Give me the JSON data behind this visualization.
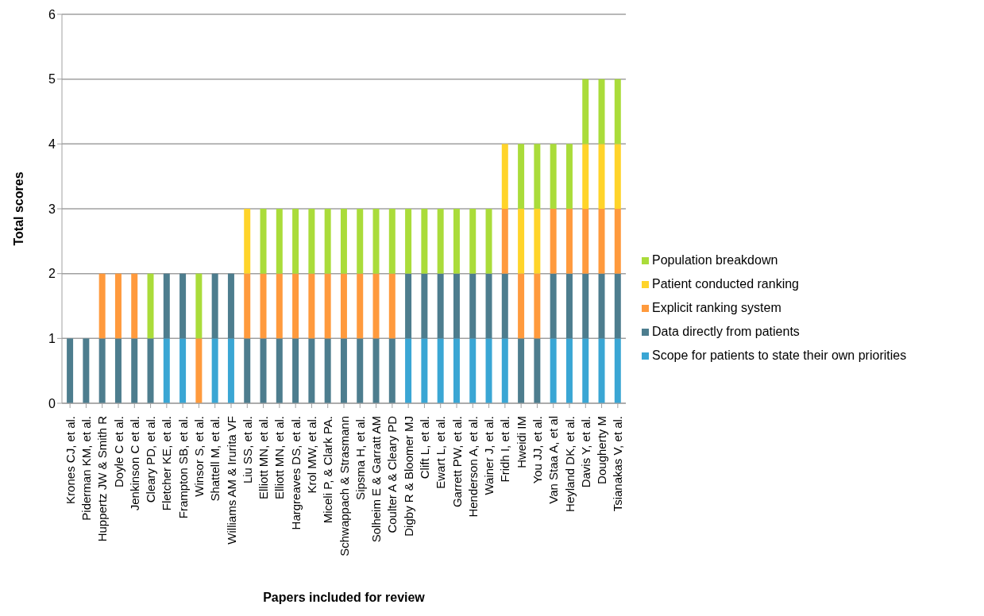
{
  "chart_data": {
    "type": "bar",
    "stacked": true,
    "xlabel": "Papers included for review",
    "ylabel": "Total scores",
    "categories": [
      "Krones CJ, et al.",
      "Piderman KM, et al.",
      "Huppertz JW & Smith R",
      "Doyle C et al.",
      "Jenkinson C et al.",
      "Cleary PD, et al.",
      "Fletcher KE, et al.",
      "Frampton SB, et al.",
      "Winsor S, et al.",
      "Shattell M, et al.",
      "Williams AM & Irurita VF",
      "Liu SS, et al.",
      "Elliott MN, et al.",
      "Elliott MN, et al.",
      "Hargreaves DS, et al.",
      "Krol MW, et al.",
      "Miceli P, & Clark PA.",
      "Schwappach & Strasmann",
      "Sipsma H, et al.",
      "Solheim E & Garratt AM",
      "Coulter A & Cleary PD",
      "Digby R & Bloomer MJ",
      "Clift L, et al.",
      "Ewart L, et al.",
      "Garrett PW, et al.",
      "Henderson A, et al.",
      "Wainer J, et al.",
      "Fridh I, et al.",
      "Hweidi IM",
      "You JJ, et al.",
      "Van Staa A, et al",
      "Heyland DK, et al.",
      "Davis Y, et al.",
      "Dougherty M",
      "Tsianakas V, et al."
    ],
    "series": [
      {
        "name": "Scope for patients to state their own priorities",
        "color": "#3aa6d4",
        "values": [
          0,
          0,
          0,
          0,
          0,
          0,
          1,
          1,
          0,
          1,
          1,
          0,
          0,
          0,
          0,
          0,
          0,
          0,
          0,
          0,
          0,
          1,
          1,
          1,
          1,
          1,
          1,
          1,
          0,
          0,
          1,
          1,
          1,
          1,
          1
        ]
      },
      {
        "name": "Data directly from patients",
        "color": "#4d7d8e",
        "values": [
          1,
          1,
          1,
          1,
          1,
          1,
          1,
          1,
          0,
          1,
          1,
          1,
          1,
          1,
          1,
          1,
          1,
          1,
          1,
          1,
          1,
          1,
          1,
          1,
          1,
          1,
          1,
          1,
          1,
          1,
          1,
          1,
          1,
          1,
          1
        ]
      },
      {
        "name": "Explicit ranking system",
        "color": "#ff9a3d",
        "values": [
          0,
          0,
          1,
          1,
          1,
          0,
          0,
          0,
          1,
          0,
          0,
          1,
          1,
          1,
          1,
          1,
          1,
          1,
          1,
          1,
          1,
          0,
          0,
          0,
          0,
          0,
          0,
          1,
          1,
          1,
          1,
          1,
          1,
          1,
          1
        ]
      },
      {
        "name": "Patient conducted ranking",
        "color": "#ffd42a",
        "values": [
          0,
          0,
          0,
          0,
          0,
          0,
          0,
          0,
          0,
          0,
          0,
          1,
          0,
          0,
          0,
          0,
          0,
          0,
          0,
          0,
          0,
          0,
          0,
          0,
          0,
          0,
          0,
          1,
          1,
          1,
          0,
          0,
          1,
          1,
          1
        ]
      },
      {
        "name": "Population breakdown",
        "color": "#aadc3a",
        "values": [
          0,
          0,
          0,
          0,
          0,
          1,
          0,
          0,
          1,
          0,
          0,
          0,
          1,
          1,
          1,
          1,
          1,
          1,
          1,
          1,
          1,
          1,
          1,
          1,
          1,
          1,
          1,
          0,
          1,
          1,
          1,
          1,
          1,
          1,
          1
        ]
      }
    ],
    "ylim": [
      0,
      6
    ],
    "yticks": [
      0,
      1,
      2,
      3,
      4,
      5,
      6
    ],
    "grid": "y",
    "legend": "right"
  }
}
